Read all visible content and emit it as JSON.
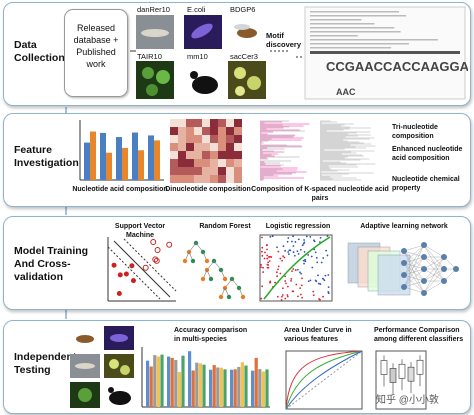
{
  "panels": [
    {
      "title": "Data Collection",
      "source": "Released database + Published work",
      "organisms": [
        "danRer10",
        "E.coli",
        "BDGP6",
        "TAIR10",
        "mm10",
        "sacCer3"
      ],
      "step": "Motif discovery"
    },
    {
      "title": "Feature Investigation",
      "features": [
        "Nucleotide acid composition",
        "Dinucleotide composition",
        "Composition of K-spaced nucleotide acid pairs"
      ],
      "other_features": [
        "Tri-nucleotide composition",
        "Enhanced nucleotide acid composition",
        "Nucleotide chemical property"
      ]
    },
    {
      "title": "Model Training And Cross-validation",
      "models": [
        "Support Vector Machine",
        "Random Forest",
        "Logistic regression",
        "Adaptive learning network"
      ]
    },
    {
      "title": "Independent Testing",
      "evaluations": [
        "Accuracy comparison in multi-species",
        "Area Under Curve in various features",
        "Performance Comparison among different classifiers"
      ]
    }
  ],
  "watermark": "知乎 @小小敦"
}
